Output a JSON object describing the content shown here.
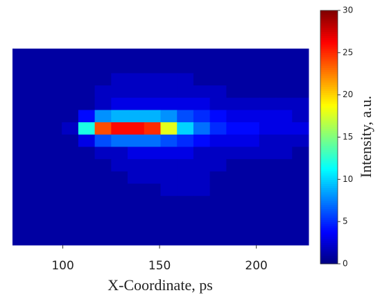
{
  "chart_data": {
    "type": "heatmap",
    "x_label": "X-Coordinate, ps",
    "colorbar_label": "Intensity, a.u.",
    "colormap": "jet",
    "xbins": [
      74,
      82.5,
      91,
      99.5,
      108,
      116.5,
      125,
      133.5,
      142,
      150.5,
      159,
      167.5,
      176,
      184.5,
      193,
      201.5,
      210,
      218.5,
      227
    ],
    "xlim": [
      74,
      227
    ],
    "xticks": [
      100,
      150,
      200
    ],
    "clim": [
      0,
      30
    ],
    "cticks": [
      0,
      5,
      10,
      15,
      20,
      25,
      30
    ],
    "z": [
      [
        1,
        1,
        1,
        1,
        1,
        1,
        1,
        1,
        1,
        1,
        1,
        1,
        1,
        1,
        1,
        1,
        1,
        1
      ],
      [
        1,
        1,
        1,
        1,
        1,
        1,
        1,
        1,
        1,
        1,
        1,
        1,
        1,
        1,
        1,
        1,
        1,
        1
      ],
      [
        1,
        1,
        1,
        1,
        1,
        1,
        2,
        2,
        2,
        2,
        2,
        1,
        1,
        1,
        1,
        1,
        1,
        1
      ],
      [
        1,
        1,
        1,
        1,
        1,
        2,
        2,
        2,
        2,
        2,
        2,
        2,
        2,
        1,
        1,
        1,
        1,
        1
      ],
      [
        1,
        1,
        1,
        1,
        1,
        2,
        3,
        3,
        3,
        3,
        3,
        3,
        2,
        2,
        2,
        2,
        2,
        2
      ],
      [
        1,
        1,
        1,
        1,
        4,
        8,
        9,
        9,
        9,
        8,
        6,
        5,
        4,
        3,
        3,
        3,
        3,
        2
      ],
      [
        1,
        1,
        1,
        2,
        12,
        24,
        26,
        26,
        25,
        18,
        10,
        7,
        5,
        4,
        4,
        3,
        3,
        3
      ],
      [
        1,
        1,
        1,
        1,
        3,
        6,
        7,
        7,
        7,
        6,
        5,
        4,
        3,
        3,
        3,
        2,
        2,
        2
      ],
      [
        1,
        1,
        1,
        1,
        1,
        2,
        2,
        3,
        3,
        3,
        3,
        2,
        2,
        2,
        2,
        2,
        2,
        1
      ],
      [
        1,
        1,
        1,
        1,
        1,
        1,
        2,
        2,
        2,
        2,
        2,
        2,
        2,
        1,
        1,
        1,
        1,
        1
      ],
      [
        1,
        1,
        1,
        1,
        1,
        1,
        1,
        2,
        2,
        2,
        2,
        2,
        1,
        1,
        1,
        1,
        1,
        1
      ],
      [
        1,
        1,
        1,
        1,
        1,
        1,
        1,
        1,
        1,
        2,
        2,
        2,
        1,
        1,
        1,
        1,
        1,
        1
      ],
      [
        1,
        1,
        1,
        1,
        1,
        1,
        1,
        1,
        1,
        1,
        1,
        1,
        1,
        1,
        1,
        1,
        1,
        1
      ],
      [
        1,
        1,
        1,
        1,
        1,
        1,
        1,
        1,
        1,
        1,
        1,
        1,
        1,
        1,
        1,
        1,
        1,
        1
      ],
      [
        1,
        1,
        1,
        1,
        1,
        1,
        1,
        1,
        1,
        1,
        1,
        1,
        1,
        1,
        1,
        1,
        1,
        1
      ],
      [
        1,
        1,
        1,
        1,
        1,
        1,
        1,
        1,
        1,
        1,
        1,
        1,
        1,
        1,
        1,
        1,
        1,
        1
      ]
    ]
  }
}
